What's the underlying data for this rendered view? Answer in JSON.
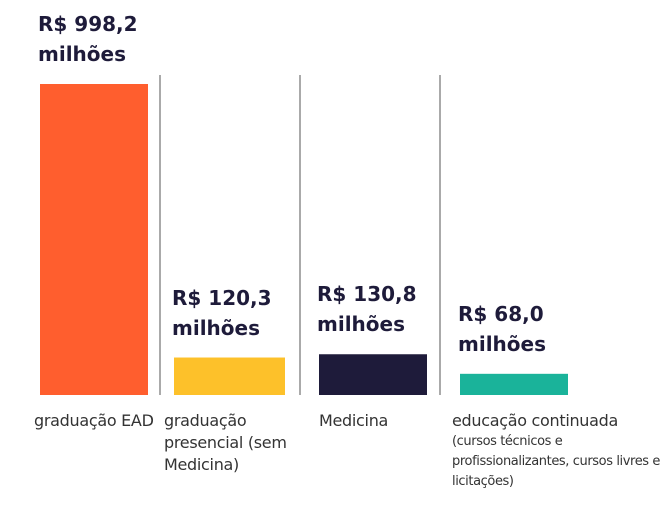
{
  "chart_data": {
    "type": "bar",
    "categories": [
      "graduação EAD",
      "graduação presencial (sem Medicina)",
      "Medicina",
      "educação continuada"
    ],
    "category_details": [
      null,
      null,
      null,
      "(cursos técnicos e profissionalizantes, cursos livres e licitações)"
    ],
    "values": [
      998.2,
      120.3,
      130.8,
      68.0
    ],
    "value_labels": [
      "R$ 998,2 milhões",
      "R$ 120,3 milhões",
      "R$ 130,8 milhões",
      "R$ 68,0 milhões"
    ],
    "colors": [
      "#ff5e2e",
      "#fdc12a",
      "#1e1b3a",
      "#1ab39a"
    ]
  }
}
